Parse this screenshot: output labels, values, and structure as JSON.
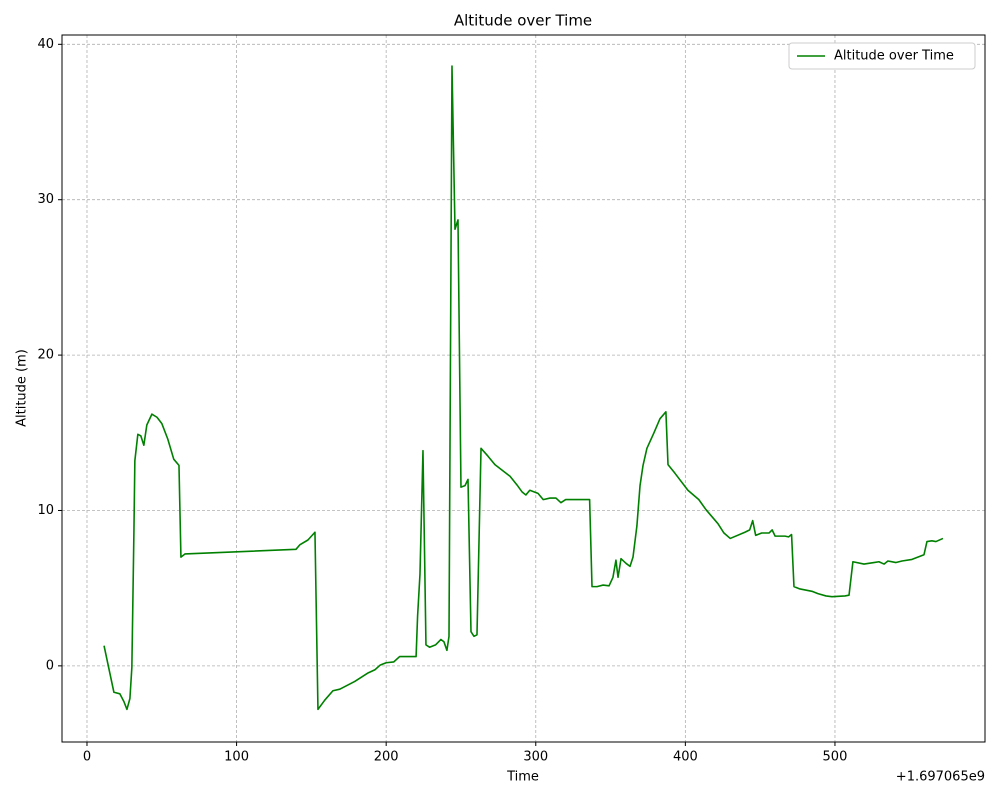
{
  "chart_data": {
    "type": "line",
    "title": "Altitude over Time",
    "x_label": "Time",
    "y_label": "Altitude (m)",
    "x_offset_label": "+1.697065e9",
    "x": [
      11.4,
      18,
      22,
      24.7,
      26.7,
      28.7,
      30,
      31.4,
      32,
      34,
      36,
      38,
      40,
      43.4,
      46.8,
      50,
      54,
      58,
      61.5,
      62.8,
      65.5,
      139.7,
      142.4,
      147.7,
      152.4,
      154.4,
      159,
      164.4,
      169,
      179,
      188,
      192.5,
      196,
      200,
      205,
      209,
      213,
      220,
      221,
      222.6,
      224.6,
      226.6,
      229,
      233,
      236.6,
      238.6,
      240.6,
      242,
      244,
      246,
      248,
      250,
      252.7,
      254.7,
      256.7,
      258.7,
      260.7,
      263.4,
      268,
      272.7,
      282.8,
      287.4,
      290.8,
      293.4,
      296,
      301.5,
      305,
      309.5,
      313.5,
      316.8,
      320,
      326,
      336,
      337.6,
      341,
      345,
      349,
      351.6,
      353.6,
      355,
      357,
      360.3,
      363,
      365,
      367.6,
      369.7,
      371.7,
      374.3,
      379,
      383,
      387,
      388.4,
      393,
      401.7,
      409,
      413.8,
      421.8,
      425.8,
      430,
      439.8,
      443,
      445,
      447,
      451,
      455.9,
      458,
      460,
      466.6,
      469,
      471,
      472.6,
      476.6,
      484.6,
      488.6,
      494,
      498,
      506.7,
      509.4,
      512,
      519.4,
      526,
      529.4,
      532.8,
      535.4,
      540.8,
      544.8,
      551.5,
      559.5,
      561.5,
      564.8,
      567.5,
      572.2
    ],
    "series": [
      {
        "name": "Altitude over Time",
        "color": "#008000",
        "values": [
          1.3,
          -1.7,
          -1.8,
          -2.3,
          -2.8,
          -2.1,
          -0.1,
          8.8,
          13.2,
          14.9,
          14.8,
          14.2,
          15.5,
          16.2,
          16.0,
          15.6,
          14.6,
          13.3,
          12.9,
          7.0,
          7.2,
          7.5,
          7.8,
          8.1,
          8.6,
          -2.8,
          -2.2,
          -1.6,
          -1.5,
          -1.0,
          -0.45,
          -0.25,
          0.05,
          0.2,
          0.25,
          0.6,
          0.6,
          0.6,
          3.2,
          5.9,
          13.85,
          1.35,
          1.2,
          1.35,
          1.7,
          1.55,
          1.0,
          1.9,
          38.6,
          28.1,
          28.7,
          11.5,
          11.6,
          12.0,
          2.2,
          1.9,
          2.0,
          14.0,
          13.5,
          12.95,
          12.2,
          11.65,
          11.2,
          11.0,
          11.3,
          11.1,
          10.7,
          10.8,
          10.8,
          10.5,
          10.7,
          10.7,
          10.7,
          5.1,
          5.1,
          5.2,
          5.15,
          5.7,
          6.8,
          5.7,
          6.9,
          6.6,
          6.4,
          7.0,
          9.0,
          11.6,
          12.9,
          14.0,
          15.0,
          15.9,
          16.35,
          12.95,
          12.4,
          11.3,
          10.7,
          10.05,
          9.15,
          8.55,
          8.2,
          8.6,
          8.75,
          9.35,
          8.4,
          8.55,
          8.55,
          8.75,
          8.35,
          8.35,
          8.3,
          8.45,
          5.1,
          4.95,
          4.8,
          4.65,
          4.5,
          4.45,
          4.5,
          4.55,
          6.7,
          6.55,
          6.65,
          6.7,
          6.55,
          6.75,
          6.65,
          6.75,
          6.85,
          7.15,
          8.0,
          8.05,
          8.0,
          8.2
        ]
      }
    ],
    "xlim": [
      -16.7,
      600.3
    ],
    "ylim": [
      -4.9,
      40.6
    ],
    "xticks": [
      0,
      100,
      200,
      300,
      400,
      500
    ],
    "yticks": [
      0,
      10,
      20,
      30,
      40
    ],
    "grid": true,
    "legend": "upper right"
  }
}
